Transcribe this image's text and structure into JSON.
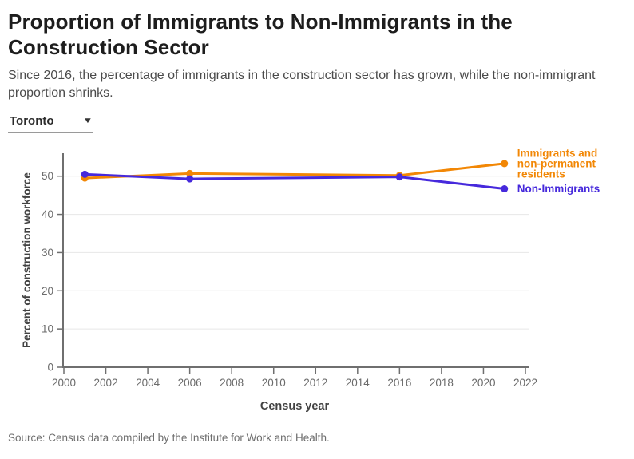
{
  "header": {
    "title": "Proportion of Immigrants to Non-Immigrants in the Construction Sector",
    "subtitle": "Since 2016, the percentage of immigrants in the construction sector has grown, while the non-immigrant proportion shrinks."
  },
  "controls": {
    "region_dropdown": {
      "value": "Toronto",
      "caret_icon": "▼"
    }
  },
  "chart_data": {
    "type": "line",
    "x": [
      2001,
      2006,
      2016,
      2021
    ],
    "series": [
      {
        "name": "Immigrants and non-permanent residents",
        "label_lines": [
          "Immigrants and",
          "non-permanent",
          "residents"
        ],
        "color": "#f28705",
        "values": [
          49.5,
          50.7,
          50.2,
          53.3
        ]
      },
      {
        "name": "Non-Immigrants",
        "label_lines": [
          "Non-Immigrants"
        ],
        "color": "#4629dc",
        "values": [
          50.5,
          49.3,
          49.8,
          46.7
        ]
      }
    ],
    "xlabel": "Census year",
    "ylabel": "Percent of construction workforce",
    "xlim": [
      2000,
      2022
    ],
    "ylim": [
      0,
      56
    ],
    "x_ticks": [
      2000,
      2002,
      2004,
      2006,
      2008,
      2010,
      2012,
      2014,
      2016,
      2018,
      2020,
      2022
    ],
    "y_ticks": [
      0,
      10,
      20,
      30,
      40,
      50
    ],
    "grid": true,
    "legend_position": "right-of-line-ends",
    "axis_color": "#6f6f6f",
    "grid_color": "#e7e7e7",
    "tick_label_color": "#6b6b6b",
    "axis_title_color": "#424242"
  },
  "footer": {
    "source": "Source: Census data compiled by the Institute for Work and Health."
  }
}
